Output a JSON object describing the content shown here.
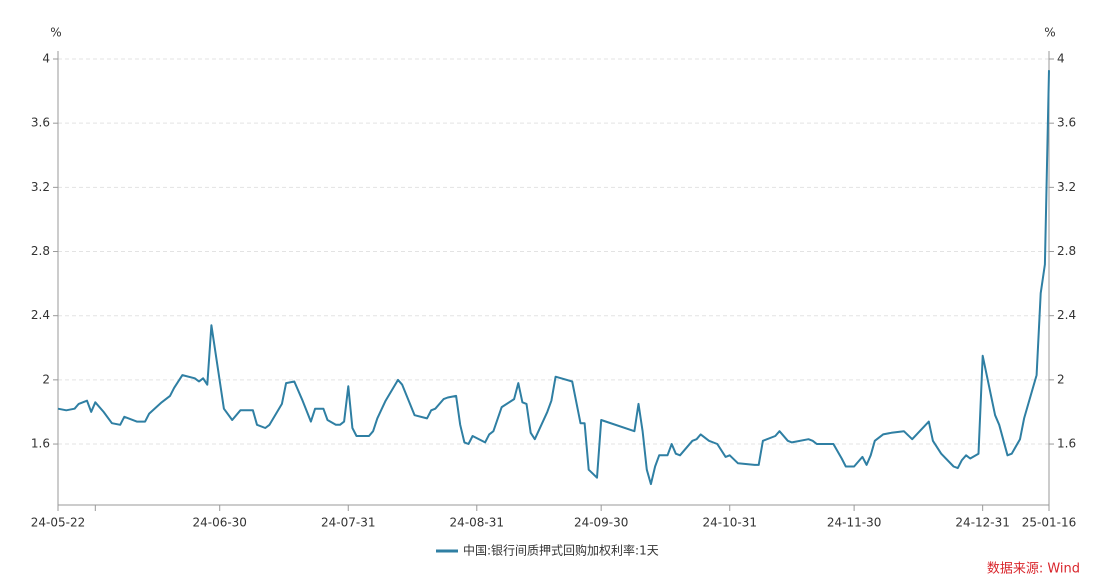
{
  "chart_data": {
    "type": "line",
    "y_unit": "%",
    "y2_unit": "%",
    "x": [
      "24-05-22",
      "24-05-24",
      "24-05-26",
      "24-05-27",
      "24-05-29",
      "24-05-30",
      "24-05-31",
      "24-06-02",
      "24-06-04",
      "24-06-06",
      "24-06-07",
      "24-06-10",
      "24-06-12",
      "24-06-13",
      "24-06-16",
      "24-06-18",
      "24-06-19",
      "24-06-21",
      "24-06-24",
      "24-06-25",
      "24-06-26",
      "24-06-27",
      "24-06-28",
      "24-07-01",
      "24-07-03",
      "24-07-05",
      "24-07-08",
      "24-07-09",
      "24-07-11",
      "24-07-12",
      "24-07-15",
      "24-07-16",
      "24-07-18",
      "24-07-20",
      "24-07-22",
      "24-07-23",
      "24-07-25",
      "24-07-26",
      "24-07-28",
      "24-07-29",
      "24-07-30",
      "24-07-31",
      "24-08-01",
      "24-08-02",
      "24-08-05",
      "24-08-06",
      "24-08-07",
      "24-08-09",
      "24-08-12",
      "24-08-13",
      "24-08-16",
      "24-08-19",
      "24-08-20",
      "24-08-21",
      "24-08-23",
      "24-08-24",
      "24-08-26",
      "24-08-27",
      "24-08-28",
      "24-08-29",
      "24-08-30",
      "24-09-02",
      "24-09-03",
      "24-09-04",
      "24-09-06",
      "24-09-09",
      "24-09-10",
      "24-09-11",
      "24-09-12",
      "24-09-13",
      "24-09-14",
      "24-09-17",
      "24-09-18",
      "24-09-19",
      "24-09-23",
      "24-09-25",
      "24-09-26",
      "24-09-27",
      "24-09-29",
      "24-09-30",
      "24-10-08",
      "24-10-09",
      "24-10-10",
      "24-10-11",
      "24-10-12",
      "24-10-13",
      "24-10-14",
      "24-10-16",
      "24-10-17",
      "24-10-18",
      "24-10-19",
      "24-10-22",
      "24-10-23",
      "24-10-24",
      "24-10-26",
      "24-10-28",
      "24-10-30",
      "24-10-31",
      "24-11-02",
      "24-11-06",
      "24-11-07",
      "24-11-08",
      "24-11-11",
      "24-11-12",
      "24-11-14",
      "24-11-15",
      "24-11-19",
      "24-11-20",
      "24-11-21",
      "24-11-25",
      "24-11-27",
      "24-11-28",
      "24-11-30",
      "24-12-02",
      "24-12-03",
      "24-12-04",
      "24-12-05",
      "24-12-07",
      "24-12-09",
      "24-12-12",
      "24-12-14",
      "24-12-18",
      "24-12-19",
      "24-12-21",
      "24-12-24",
      "24-12-25",
      "24-12-26",
      "24-12-27",
      "24-12-28",
      "24-12-30",
      "24-12-31",
      "25-01-03",
      "25-01-04",
      "25-01-06",
      "25-01-07",
      "25-01-09",
      "25-01-10",
      "25-01-13",
      "25-01-14",
      "25-01-15",
      "25-01-16"
    ],
    "series": [
      {
        "name": "中国:银行间质押式回购加权利率:1天",
        "color": "#2f7fa3",
        "values": [
          1.82,
          1.81,
          1.82,
          1.85,
          1.87,
          1.8,
          1.86,
          1.8,
          1.73,
          1.72,
          1.77,
          1.74,
          1.74,
          1.79,
          1.86,
          1.9,
          1.95,
          2.03,
          2.01,
          1.99,
          2.01,
          1.97,
          2.34,
          1.82,
          1.75,
          1.81,
          1.81,
          1.72,
          1.7,
          1.72,
          1.85,
          1.98,
          1.99,
          1.87,
          1.74,
          1.82,
          1.82,
          1.75,
          1.72,
          1.72,
          1.74,
          1.96,
          1.7,
          1.65,
          1.65,
          1.68,
          1.76,
          1.87,
          2.0,
          1.97,
          1.78,
          1.76,
          1.81,
          1.82,
          1.88,
          1.89,
          1.9,
          1.72,
          1.61,
          1.6,
          1.65,
          1.61,
          1.66,
          1.68,
          1.83,
          1.88,
          1.98,
          1.86,
          1.85,
          1.67,
          1.63,
          1.8,
          1.87,
          2.02,
          1.99,
          1.73,
          1.73,
          1.44,
          1.39,
          1.75,
          1.68,
          1.85,
          1.68,
          1.44,
          1.35,
          1.46,
          1.53,
          1.53,
          1.6,
          1.54,
          1.53,
          1.62,
          1.63,
          1.66,
          1.62,
          1.6,
          1.52,
          1.53,
          1.48,
          1.47,
          1.47,
          1.62,
          1.65,
          1.68,
          1.62,
          1.61,
          1.63,
          1.62,
          1.6,
          1.6,
          1.51,
          1.46,
          1.46,
          1.52,
          1.47,
          1.53,
          1.62,
          1.66,
          1.67,
          1.68,
          1.63,
          1.74,
          1.62,
          1.54,
          1.46,
          1.45,
          1.5,
          1.53,
          1.51,
          1.54,
          2.15,
          1.78,
          1.72,
          1.53,
          1.54,
          1.63,
          1.76,
          2.03,
          2.54,
          2.72,
          3.93
        ]
      }
    ],
    "xlim": [
      "24-05-22",
      "25-01-16"
    ],
    "xticks": [
      "24-05-22",
      {
        "value": "24-05-31",
        "label": null
      },
      "24-06-30",
      "24-07-31",
      "24-08-31",
      "24-09-30",
      "24-10-31",
      "24-11-30",
      "24-12-31",
      "25-01-16"
    ],
    "ylim": [
      1.22,
      4
    ],
    "yticks": [
      1.6,
      2,
      2.4,
      2.8,
      3.2,
      3.6,
      4
    ],
    "y2lim": [
      1.22,
      4
    ],
    "y2ticks": [
      1.6,
      2,
      2.4,
      2.8,
      3.2,
      3.6,
      4
    ],
    "grid": true,
    "legend": "bottom",
    "source": "数据来源: Wind"
  }
}
